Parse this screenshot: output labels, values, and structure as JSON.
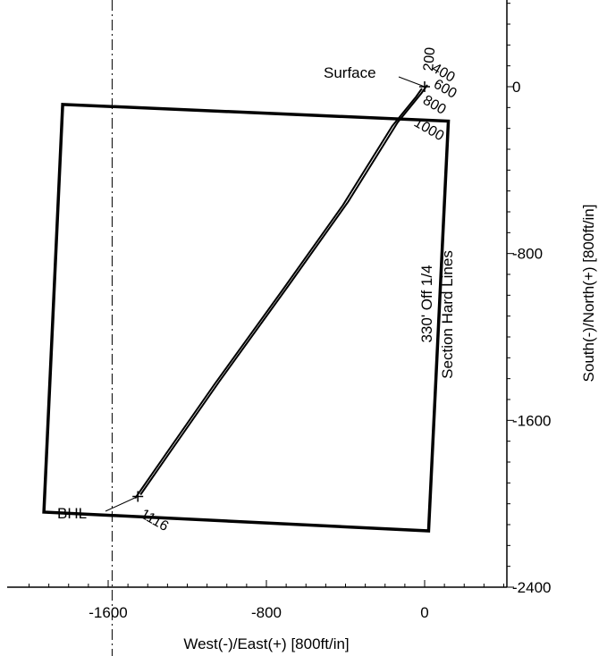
{
  "chart_data": {
    "type": "plan-view-well-path",
    "xlabel": "West(-)/East(+) [800ft/in]",
    "ylabel": "South(-)/North(+) [800ft/in]",
    "xlim": [
      -2050,
      470
    ],
    "ylim": [
      -2400,
      400
    ],
    "x_ticks": [
      {
        "value": -1600,
        "label": "-1600"
      },
      {
        "value": -800,
        "label": "-800"
      },
      {
        "value": 0,
        "label": "0"
      }
    ],
    "y_ticks": [
      {
        "value": 0,
        "label": "0"
      },
      {
        "value": -800,
        "label": "-800"
      },
      {
        "value": -1600,
        "label": "-1600"
      },
      {
        "value": -2400,
        "label": "-2400"
      }
    ],
    "section_polygon": [
      [
        -1830,
        -85
      ],
      [
        120,
        -165
      ],
      [
        20,
        -2130
      ],
      [
        -1925,
        -2040
      ]
    ],
    "section_label": [
      "330' Off 1/4",
      "Section Hard Lines"
    ],
    "reference_line_x": -1580,
    "well_path": [
      [
        0,
        0
      ],
      [
        -30,
        -40
      ],
      [
        -150,
        -180
      ],
      [
        -400,
        -560
      ],
      [
        -700,
        -960
      ],
      [
        -1050,
        -1420
      ],
      [
        -1300,
        -1760
      ],
      [
        -1450,
        -1965
      ]
    ],
    "surface": {
      "label": "Surface",
      "x": 0,
      "y": 0
    },
    "bhl": {
      "label": "BHL",
      "x": -1450,
      "y": -1965
    },
    "md_labels": [
      "200",
      "400",
      "600",
      "800",
      "1000",
      "1116"
    ]
  }
}
